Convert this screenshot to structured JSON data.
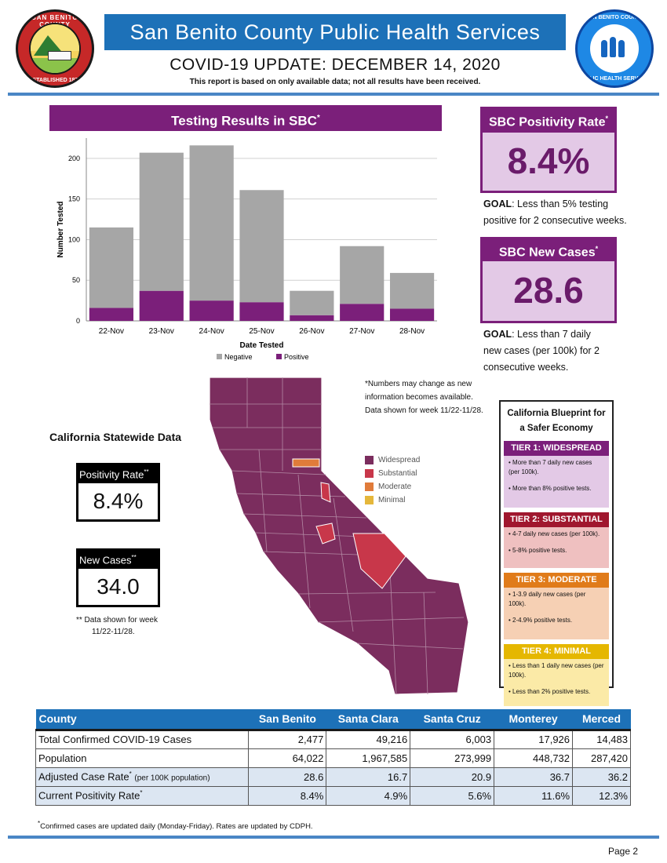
{
  "header": {
    "title": "San Benito County Public Health Services",
    "update": "COVID-19 UPDATE: DECEMBER 14, 2020",
    "subtitle": "This report is based on only available data; not all results have been received.",
    "seal_top": "SAN BENITO COUNTY",
    "seal_bottom": "ESTABLISHED 1874",
    "logo_top": "SAN BENITO COUNTY",
    "logo_bottom": "PUBLIC HEALTH SERVICES"
  },
  "testing": {
    "title": "Testing Results in SBC",
    "title_mark": "*"
  },
  "chart_data": {
    "type": "bar",
    "stacked": true,
    "title": "Testing Results in SBC*",
    "xlabel": "Date Tested",
    "ylabel": "Number Tested",
    "categories": [
      "22-Nov",
      "23-Nov",
      "24-Nov",
      "25-Nov",
      "26-Nov",
      "27-Nov",
      "28-Nov"
    ],
    "series": [
      {
        "name": "Negative",
        "color": "#a6a6a6",
        "values": [
          99,
          170,
          191,
          138,
          30,
          71,
          44
        ]
      },
      {
        "name": "Positive",
        "color": "#7b1f7a",
        "values": [
          16,
          37,
          25,
          23,
          7,
          21,
          15
        ]
      }
    ],
    "ylim": [
      0,
      225
    ],
    "yticks": [
      0,
      50,
      100,
      150,
      200
    ],
    "grid": true,
    "legend": "bottom"
  },
  "sbc_positivity": {
    "label": "SBC Positivity Rate",
    "mark": "*",
    "value": "8.4%",
    "goal_label": "GOAL",
    "goal_line1": ": Less than 5% testing",
    "goal_line2": "positive for 2 consecutive weeks."
  },
  "sbc_new_cases": {
    "label": "SBC New Cases",
    "mark": "*",
    "value": "28.6",
    "goal_label": "GOAL",
    "goal_line1": ": Less than 7 daily",
    "goal_line2": "new cases (per 100k) for 2",
    "goal_line3": "consecutive weeks."
  },
  "map_note": {
    "line1": "*Numbers may change as new",
    "line2": "information becomes available.",
    "line3": "Data shown for week 11/22-11/28."
  },
  "statewide": {
    "title": "California Statewide Data",
    "positivity_label": "Positivity Rate",
    "positivity_mark": "**",
    "positivity_value": "8.4%",
    "cases_label": "New Cases",
    "cases_mark": "**",
    "cases_value": "34.0",
    "footnote1": "** Data shown for week",
    "footnote2": "11/22-11/28."
  },
  "map_legend": [
    {
      "label": "Widespread",
      "color": "#7b2d5e"
    },
    {
      "label": "Substantial",
      "color": "#c8374a"
    },
    {
      "label": "Moderate",
      "color": "#e07b3a"
    },
    {
      "label": "Minimal",
      "color": "#e5b73b"
    }
  ],
  "blueprint": {
    "title1": "California Blueprint for",
    "title2": "a Safer Economy",
    "tiers": [
      {
        "name": "TIER 1: WIDESPREAD",
        "color": "#7b1f7a",
        "bg": "#e3c9e6",
        "items": [
          "• More than 7 daily new cases (per 100k).",
          "• More than 8% positive tests."
        ]
      },
      {
        "name": "TIER 2: SUBSTANTIAL",
        "color": "#a0172e",
        "bg": "#efc0c0",
        "items": [
          "• 4-7 daily new cases (per 100k).",
          "• 5-8% positive tests."
        ]
      },
      {
        "name": "TIER 3: MODERATE",
        "color": "#e07b1a",
        "bg": "#f6d0b4",
        "items": [
          "• 1-3.9 daily new cases (per 100k).",
          "• 2-4.9% positive tests."
        ]
      },
      {
        "name": "TIER 4: MINIMAL",
        "color": "#e5b700",
        "bg": "#fbeaa7",
        "items": [
          "• Less than 1 daily new cases (per 100k).",
          "• Less than 2% positive tests."
        ]
      }
    ]
  },
  "comparison": {
    "columns": [
      "County",
      "San Benito",
      "Santa Clara",
      "Santa Cruz",
      "Monterey",
      "Merced"
    ],
    "rows": [
      {
        "label": "Total Confirmed COVID-19 Cases",
        "values": [
          "2,477",
          "49,216",
          "6,003",
          "17,926",
          "14,483"
        ]
      },
      {
        "label": "Population",
        "values": [
          "64,022",
          "1,967,585",
          "273,999",
          "448,732",
          "287,420"
        ]
      },
      {
        "label": "Adjusted Case Rate",
        "mark": "*",
        "note": "(per 100K population)",
        "values": [
          "28.6",
          "16.7",
          "20.9",
          "36.7",
          "36.2"
        ]
      },
      {
        "label": "Current Positivity Rate",
        "mark": "*",
        "values": [
          "8.4%",
          "4.9%",
          "5.6%",
          "11.6%",
          "12.3%"
        ]
      }
    ]
  },
  "footnote": {
    "mark": "*",
    "text": "Confirmed cases are updated daily (Monday-Friday). Rates are updated by CDPH."
  },
  "page": "Page 2"
}
